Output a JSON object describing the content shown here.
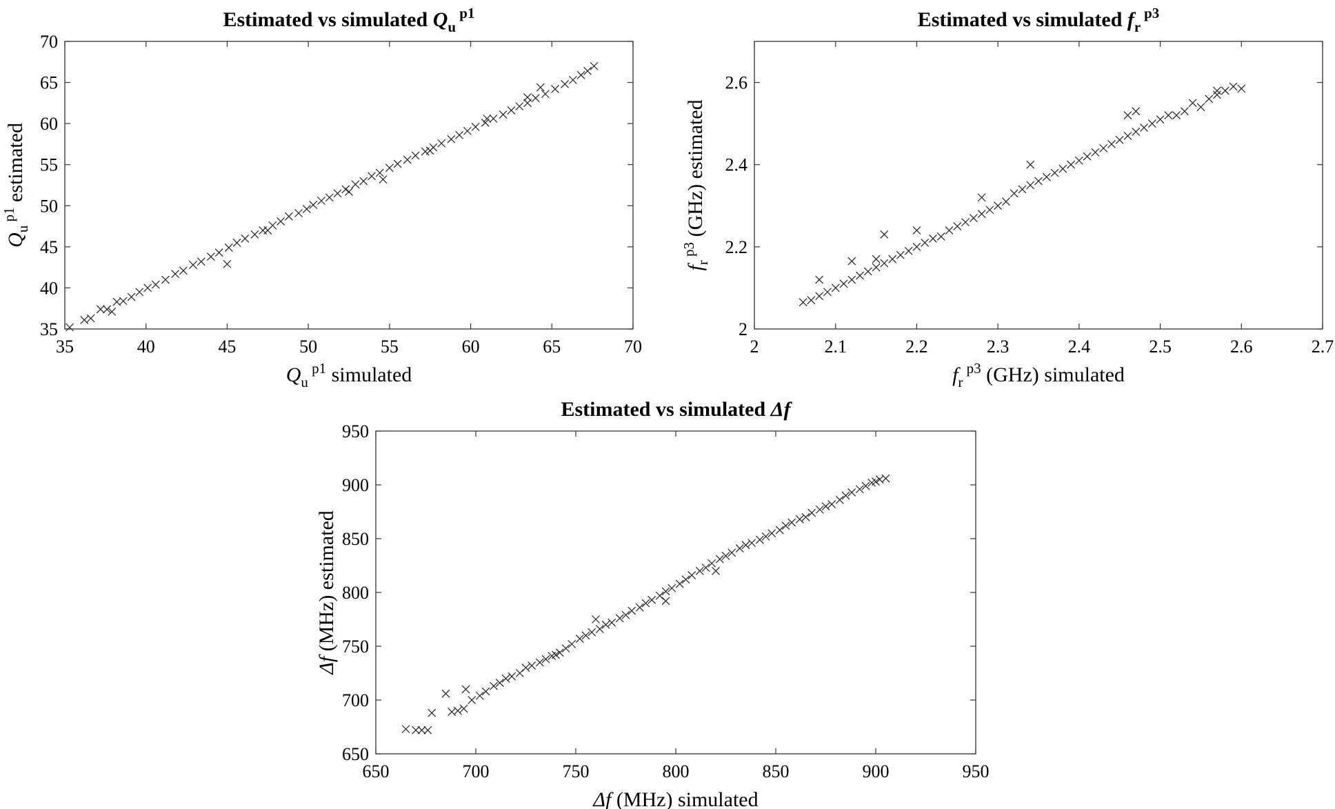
{
  "figure": {
    "panels": [
      {
        "title_prefix": "Estimated vs simulated ",
        "title_sym": "Q",
        "title_sub": "u",
        "title_sup": "p1",
        "xlabel_sym": "Q",
        "xlabel_sub": "u",
        "xlabel_sup": "p1",
        "xlabel_text": " simulated",
        "ylabel_sym": "Q",
        "ylabel_sub": "u",
        "ylabel_sup": "p1",
        "ylabel_text": " estimated",
        "xticks": [
          "35",
          "40",
          "45",
          "50",
          "55",
          "60",
          "65",
          "70"
        ],
        "yticks": [
          "35",
          "40",
          "45",
          "50",
          "55",
          "60",
          "65",
          "70"
        ]
      },
      {
        "title_prefix": "Estimated vs simulated ",
        "title_sym": "f",
        "title_sub": "r",
        "title_sup": "p3",
        "xlabel_sym": "f",
        "xlabel_sub": "r",
        "xlabel_sup": "p3",
        "xlabel_text": " (GHz) simulated",
        "ylabel_sym": "f",
        "ylabel_sub": "r",
        "ylabel_sup": "p3",
        "ylabel_text": " (GHz) estimated",
        "xticks": [
          "2",
          "2.1",
          "2.2",
          "2.3",
          "2.4",
          "2.5",
          "2.6",
          "2.7"
        ],
        "yticks": [
          "2",
          "2.2",
          "2.4",
          "2.6"
        ]
      },
      {
        "title_prefix": "Estimated vs simulated ",
        "title_sym": "Δf",
        "title_sub": "",
        "title_sup": "",
        "xlabel_sym": "Δf",
        "xlabel_sub": "",
        "xlabel_sup": "",
        "xlabel_text": " (MHz) simulated",
        "ylabel_sym": "Δf",
        "ylabel_sub": "",
        "ylabel_sup": "",
        "ylabel_text": " (MHz) estimated",
        "xticks": [
          "650",
          "700",
          "750",
          "800",
          "850",
          "900",
          "950"
        ],
        "yticks": [
          "650",
          "700",
          "750",
          "800",
          "850",
          "900",
          "950"
        ]
      }
    ]
  },
  "chart_data": [
    {
      "type": "scatter",
      "marker": "x",
      "color": "#222222",
      "xlim": [
        35,
        70
      ],
      "ylim": [
        35,
        70
      ],
      "xtick_values": [
        35,
        40,
        45,
        50,
        55,
        60,
        65,
        70
      ],
      "ytick_values": [
        35,
        40,
        45,
        50,
        55,
        60,
        65,
        70
      ],
      "grid": false,
      "points": [
        [
          35.3,
          35.2
        ],
        [
          36.2,
          36.1
        ],
        [
          36.6,
          36.3
        ],
        [
          37.2,
          37.4
        ],
        [
          37.6,
          37.4
        ],
        [
          37.9,
          37.1
        ],
        [
          38.2,
          38.3
        ],
        [
          38.6,
          38.4
        ],
        [
          39.1,
          38.9
        ],
        [
          39.6,
          39.5
        ],
        [
          40.1,
          40.0
        ],
        [
          40.6,
          40.4
        ],
        [
          41.2,
          41.0
        ],
        [
          41.8,
          41.7
        ],
        [
          42.3,
          42.1
        ],
        [
          42.9,
          42.8
        ],
        [
          43.4,
          43.2
        ],
        [
          44.0,
          43.8
        ],
        [
          44.5,
          44.3
        ],
        [
          45.0,
          42.9
        ],
        [
          45.1,
          44.9
        ],
        [
          45.6,
          45.5
        ],
        [
          46.1,
          46.0
        ],
        [
          46.7,
          46.5
        ],
        [
          47.2,
          47.0
        ],
        [
          47.8,
          47.6
        ],
        [
          48.3,
          48.1
        ],
        [
          48.8,
          48.7
        ],
        [
          49.4,
          49.1
        ],
        [
          49.9,
          49.6
        ],
        [
          50.3,
          50.1
        ],
        [
          50.8,
          50.6
        ],
        [
          51.3,
          51.0
        ],
        [
          51.8,
          51.5
        ],
        [
          52.3,
          52.0
        ],
        [
          52.9,
          52.6
        ],
        [
          53.4,
          53.0
        ],
        [
          53.9,
          53.6
        ],
        [
          54.4,
          54.0
        ],
        [
          54.6,
          53.2
        ],
        [
          55.0,
          54.6
        ],
        [
          55.5,
          55.1
        ],
        [
          56.1,
          55.6
        ],
        [
          56.6,
          56.1
        ],
        [
          57.2,
          56.6
        ],
        [
          57.7,
          57.1
        ],
        [
          58.2,
          57.6
        ],
        [
          58.8,
          58.1
        ],
        [
          59.3,
          58.6
        ],
        [
          59.8,
          59.1
        ],
        [
          60.3,
          59.6
        ],
        [
          60.9,
          60.1
        ],
        [
          61.4,
          60.6
        ],
        [
          62.0,
          61.1
        ],
        [
          62.5,
          61.6
        ],
        [
          63.0,
          62.1
        ],
        [
          63.5,
          62.5
        ],
        [
          64.0,
          63.1
        ],
        [
          64.3,
          64.4
        ],
        [
          64.6,
          63.6
        ],
        [
          65.2,
          64.2
        ],
        [
          65.8,
          64.8
        ],
        [
          66.3,
          65.3
        ],
        [
          66.8,
          65.9
        ],
        [
          67.2,
          66.4
        ],
        [
          67.6,
          67.0
        ],
        [
          47.5,
          47.0
        ],
        [
          52.5,
          51.7
        ],
        [
          57.5,
          56.7
        ],
        [
          61.0,
          60.6
        ],
        [
          63.5,
          63.2
        ]
      ]
    },
    {
      "type": "scatter",
      "marker": "x",
      "color": "#222222",
      "xlim": [
        2,
        2.7
      ],
      "ylim": [
        2,
        2.7
      ],
      "xtick_values": [
        2,
        2.1,
        2.2,
        2.3,
        2.4,
        2.5,
        2.6,
        2.7
      ],
      "ytick_values": [
        2,
        2.2,
        2.4,
        2.6
      ],
      "grid": false,
      "points": [
        [
          2.06,
          2.065
        ],
        [
          2.07,
          2.07
        ],
        [
          2.08,
          2.08
        ],
        [
          2.08,
          2.12
        ],
        [
          2.09,
          2.09
        ],
        [
          2.1,
          2.1
        ],
        [
          2.11,
          2.11
        ],
        [
          2.12,
          2.12
        ],
        [
          2.12,
          2.165
        ],
        [
          2.13,
          2.13
        ],
        [
          2.14,
          2.14
        ],
        [
          2.15,
          2.15
        ],
        [
          2.15,
          2.17
        ],
        [
          2.16,
          2.16
        ],
        [
          2.16,
          2.23
        ],
        [
          2.17,
          2.17
        ],
        [
          2.18,
          2.18
        ],
        [
          2.19,
          2.19
        ],
        [
          2.2,
          2.2
        ],
        [
          2.2,
          2.24
        ],
        [
          2.21,
          2.21
        ],
        [
          2.22,
          2.22
        ],
        [
          2.23,
          2.225
        ],
        [
          2.24,
          2.24
        ],
        [
          2.25,
          2.25
        ],
        [
          2.26,
          2.26
        ],
        [
          2.27,
          2.27
        ],
        [
          2.28,
          2.28
        ],
        [
          2.28,
          2.32
        ],
        [
          2.29,
          2.29
        ],
        [
          2.3,
          2.3
        ],
        [
          2.31,
          2.31
        ],
        [
          2.32,
          2.33
        ],
        [
          2.33,
          2.34
        ],
        [
          2.34,
          2.35
        ],
        [
          2.34,
          2.4
        ],
        [
          2.35,
          2.36
        ],
        [
          2.36,
          2.37
        ],
        [
          2.37,
          2.38
        ],
        [
          2.38,
          2.39
        ],
        [
          2.39,
          2.4
        ],
        [
          2.4,
          2.41
        ],
        [
          2.41,
          2.42
        ],
        [
          2.42,
          2.43
        ],
        [
          2.43,
          2.44
        ],
        [
          2.44,
          2.45
        ],
        [
          2.45,
          2.46
        ],
        [
          2.46,
          2.47
        ],
        [
          2.46,
          2.52
        ],
        [
          2.47,
          2.48
        ],
        [
          2.47,
          2.53
        ],
        [
          2.48,
          2.49
        ],
        [
          2.49,
          2.5
        ],
        [
          2.5,
          2.51
        ],
        [
          2.51,
          2.52
        ],
        [
          2.52,
          2.52
        ],
        [
          2.53,
          2.53
        ],
        [
          2.54,
          2.55
        ],
        [
          2.55,
          2.54
        ],
        [
          2.56,
          2.56
        ],
        [
          2.57,
          2.58
        ],
        [
          2.57,
          2.57
        ],
        [
          2.58,
          2.58
        ],
        [
          2.59,
          2.59
        ],
        [
          2.6,
          2.585
        ]
      ]
    },
    {
      "type": "scatter",
      "marker": "x",
      "color": "#222222",
      "xlim": [
        650,
        950
      ],
      "ylim": [
        650,
        950
      ],
      "xtick_values": [
        650,
        700,
        750,
        800,
        850,
        900,
        950
      ],
      "ytick_values": [
        650,
        700,
        750,
        800,
        850,
        900,
        950
      ],
      "grid": false,
      "points": [
        [
          665,
          673
        ],
        [
          670,
          672
        ],
        [
          673,
          672
        ],
        [
          676,
          672
        ],
        [
          678,
          688
        ],
        [
          685,
          706
        ],
        [
          688,
          689
        ],
        [
          691,
          690
        ],
        [
          694,
          692
        ],
        [
          695,
          710
        ],
        [
          698,
          700
        ],
        [
          702,
          704
        ],
        [
          705,
          708
        ],
        [
          709,
          713
        ],
        [
          712,
          716
        ],
        [
          715,
          720
        ],
        [
          718,
          722
        ],
        [
          722,
          725
        ],
        [
          725,
          730
        ],
        [
          728,
          732
        ],
        [
          732,
          735
        ],
        [
          735,
          738
        ],
        [
          738,
          741
        ],
        [
          742,
          744
        ],
        [
          745,
          748
        ],
        [
          748,
          752
        ],
        [
          752,
          757
        ],
        [
          755,
          760
        ],
        [
          758,
          763
        ],
        [
          762,
          766
        ],
        [
          765,
          770
        ],
        [
          768,
          772
        ],
        [
          772,
          776
        ],
        [
          775,
          779
        ],
        [
          778,
          783
        ],
        [
          782,
          786
        ],
        [
          785,
          790
        ],
        [
          788,
          793
        ],
        [
          792,
          797
        ],
        [
          795,
          801
        ],
        [
          798,
          804
        ],
        [
          802,
          808
        ],
        [
          805,
          812
        ],
        [
          808,
          816
        ],
        [
          812,
          820
        ],
        [
          815,
          823
        ],
        [
          818,
          827
        ],
        [
          822,
          831
        ],
        [
          825,
          834
        ],
        [
          828,
          837
        ],
        [
          832,
          841
        ],
        [
          835,
          844
        ],
        [
          838,
          846
        ],
        [
          842,
          849
        ],
        [
          845,
          852
        ],
        [
          848,
          855
        ],
        [
          852,
          858
        ],
        [
          855,
          862
        ],
        [
          858,
          865
        ],
        [
          862,
          868
        ],
        [
          865,
          870
        ],
        [
          868,
          874
        ],
        [
          872,
          877
        ],
        [
          875,
          880
        ],
        [
          878,
          882
        ],
        [
          882,
          886
        ],
        [
          885,
          890
        ],
        [
          888,
          893
        ],
        [
          892,
          896
        ],
        [
          895,
          899
        ],
        [
          898,
          902
        ],
        [
          900,
          903
        ],
        [
          902,
          905
        ],
        [
          905,
          906
        ],
        [
          760,
          775
        ],
        [
          795,
          792
        ],
        [
          740,
          742
        ],
        [
          820,
          820
        ]
      ]
    }
  ]
}
